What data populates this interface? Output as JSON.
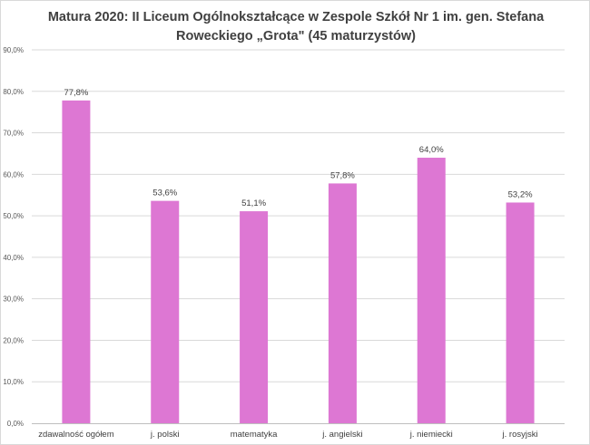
{
  "chart_data": {
    "type": "bar",
    "title_line1": "Matura 2020: II Liceum Ogólnokształcące w Zespole Szkół Nr 1 im. gen. Stefana",
    "title_line2": "Roweckiego „Grota\" (45 maturzystów)",
    "categories": [
      "zdawalność ogółem",
      "j. polski",
      "matematyka",
      "j. angielski",
      "j. niemiecki",
      "j. rosyjski"
    ],
    "values": [
      77.8,
      53.6,
      51.1,
      57.8,
      64.0,
      53.2
    ],
    "value_labels": [
      "77,8%",
      "53,6%",
      "51,1%",
      "57,8%",
      "64,0%",
      "53,2%"
    ],
    "yticks": [
      0,
      10,
      20,
      30,
      40,
      50,
      60,
      70,
      80,
      90
    ],
    "ytick_labels": [
      "0,0%",
      "10,0%",
      "20,0%",
      "30,0%",
      "40,0%",
      "50,0%",
      "60,0%",
      "70,0%",
      "80,0%",
      "90,0%"
    ],
    "ylim": [
      0,
      90
    ],
    "grid": true,
    "legend": "none",
    "bar_color": "#dd77d3",
    "grid_color": "#d9d9d9",
    "axis_color": "#bfbfbf"
  }
}
